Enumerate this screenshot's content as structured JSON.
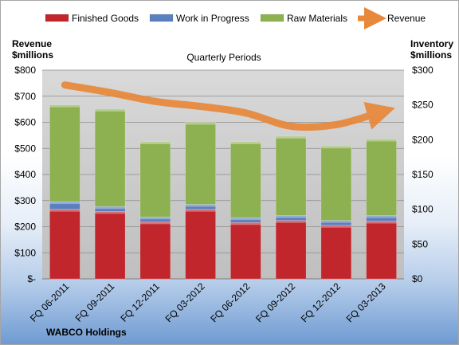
{
  "chart_data": {
    "type": "bar",
    "stacked": true,
    "title": "Quarterly Periods",
    "company": "WABCO Holdings",
    "ylabel_left": [
      "Revenue",
      "$millions"
    ],
    "ylabel_right": [
      "Inventory",
      "$millions"
    ],
    "ylim_left": [
      0,
      800
    ],
    "ylim_right": [
      0,
      300
    ],
    "left_ticks": [
      "$-",
      "$100",
      "$200",
      "$300",
      "$400",
      "$500",
      "$600",
      "$700",
      "$800"
    ],
    "right_ticks": [
      "$0",
      "$50",
      "$100",
      "$150",
      "$200",
      "$250",
      "$300"
    ],
    "categories": [
      "FQ 06-2011",
      "FQ 09-2011",
      "FQ 12-2011",
      "FQ 03-2012",
      "FQ 06-2012",
      "FQ 09-2012",
      "FQ 12-2012",
      "FQ 03-2013"
    ],
    "series": [
      {
        "name": "Finished Goods",
        "axis": "right",
        "color": "#c0262c",
        "values": [
          100,
          97,
          82,
          100,
          81,
          84,
          77,
          83
        ]
      },
      {
        "name": "Work in Progress",
        "axis": "right",
        "color": "#5b7fbf",
        "values": [
          11,
          7,
          7,
          7,
          7,
          7,
          7,
          8
        ]
      },
      {
        "name": "Raw Materials",
        "axis": "right",
        "color": "#8db150",
        "values": [
          139,
          140,
          108,
          118,
          109,
          114,
          107,
          110
        ]
      },
      {
        "name": "Revenue",
        "axis": "left",
        "type": "line",
        "color": "#e8883a",
        "values": [
          743,
          714,
          680,
          661,
          636,
          585,
          591,
          640
        ]
      }
    ],
    "grid": true,
    "legend": "top"
  }
}
